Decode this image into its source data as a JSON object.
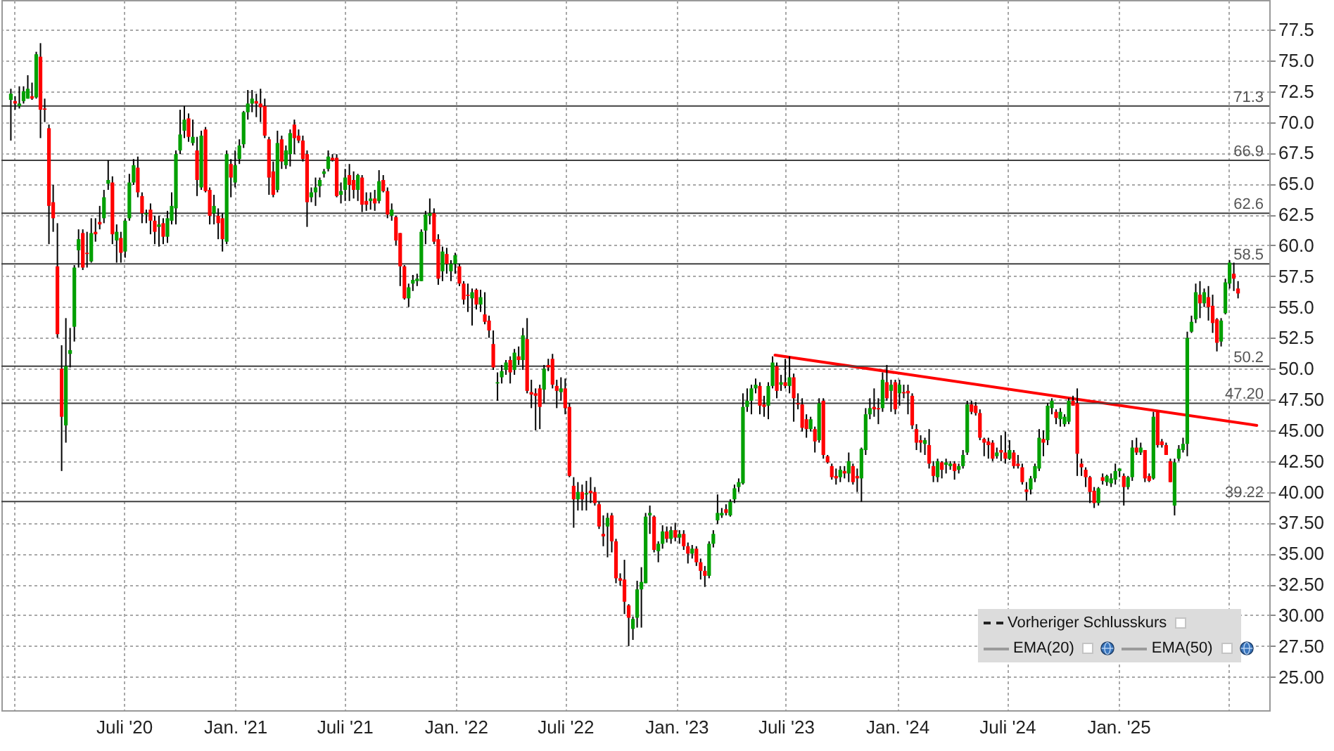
{
  "chart_data": {
    "type": "candlestick",
    "x": [
      "2019-12-27",
      "2020-01-03",
      "2020-01-10",
      "2020-01-17",
      "2020-01-24",
      "2020-01-31",
      "2020-02-07",
      "2020-02-14",
      "2020-02-21",
      "2020-02-28",
      "2020-03-06",
      "2020-03-13",
      "2020-03-20",
      "2020-03-27",
      "2020-04-03",
      "2020-04-10",
      "2020-04-17",
      "2020-04-24",
      "2020-05-01",
      "2020-05-08",
      "2020-05-15",
      "2020-05-22",
      "2020-05-29",
      "2020-06-05",
      "2020-06-12",
      "2020-06-19",
      "2020-06-26",
      "2020-07-03",
      "2020-07-10",
      "2020-07-17",
      "2020-07-24",
      "2020-07-31",
      "2020-08-07",
      "2020-08-14",
      "2020-08-21",
      "2020-08-28",
      "2020-09-04",
      "2020-09-11",
      "2020-09-18",
      "2020-09-25",
      "2020-10-02",
      "2020-10-09",
      "2020-10-16",
      "2020-10-23",
      "2020-10-30",
      "2020-11-06",
      "2020-11-13",
      "2020-11-20",
      "2020-11-27",
      "2020-12-04",
      "2020-12-11",
      "2020-12-18",
      "2020-12-25",
      "2021-01-01",
      "2021-01-08",
      "2021-01-15",
      "2021-01-22",
      "2021-01-29",
      "2021-02-05",
      "2021-02-12",
      "2021-02-19",
      "2021-02-26",
      "2021-03-05",
      "2021-03-12",
      "2021-03-19",
      "2021-03-26",
      "2021-04-02",
      "2021-04-09",
      "2021-04-16",
      "2021-04-23",
      "2021-04-30",
      "2021-05-07",
      "2021-05-14",
      "2021-05-21",
      "2021-05-28",
      "2021-06-04",
      "2021-06-11",
      "2021-06-18",
      "2021-06-25",
      "2021-07-02",
      "2021-07-09",
      "2021-07-16",
      "2021-07-23",
      "2021-07-30",
      "2021-08-06",
      "2021-08-13",
      "2021-08-20",
      "2021-08-27",
      "2021-09-03",
      "2021-09-10",
      "2021-09-17",
      "2021-09-24",
      "2021-10-01",
      "2021-10-08",
      "2021-10-15",
      "2021-10-22",
      "2021-10-29",
      "2021-11-05",
      "2021-11-12",
      "2021-11-19",
      "2021-11-26",
      "2021-12-03",
      "2021-12-10",
      "2021-12-17",
      "2021-12-24",
      "2021-12-31",
      "2022-01-07",
      "2022-01-14",
      "2022-01-21",
      "2022-01-28",
      "2022-02-04",
      "2022-02-11",
      "2022-02-18",
      "2022-02-25",
      "2022-03-04",
      "2022-03-11",
      "2022-03-18",
      "2022-03-25",
      "2022-04-01",
      "2022-04-08",
      "2022-04-15",
      "2022-04-22",
      "2022-04-29",
      "2022-05-06",
      "2022-05-13",
      "2022-05-20",
      "2022-05-27",
      "2022-06-03",
      "2022-06-10",
      "2022-06-17",
      "2022-06-24",
      "2022-07-01",
      "2022-07-08",
      "2022-07-15",
      "2022-07-22",
      "2022-07-29",
      "2022-08-05",
      "2022-08-12",
      "2022-08-19",
      "2022-08-26",
      "2022-09-02",
      "2022-09-09",
      "2022-09-16",
      "2022-09-23",
      "2022-09-30",
      "2022-10-07",
      "2022-10-14",
      "2022-10-21",
      "2022-10-28",
      "2022-11-04",
      "2022-11-11",
      "2022-11-18",
      "2022-11-25",
      "2022-12-02",
      "2022-12-09",
      "2022-12-16",
      "2022-12-23",
      "2022-12-30",
      "2023-01-06",
      "2023-01-13",
      "2023-01-20",
      "2023-01-27",
      "2023-02-03",
      "2023-02-10",
      "2023-02-17",
      "2023-02-24",
      "2023-03-03",
      "2023-03-10",
      "2023-03-17",
      "2023-03-24",
      "2023-03-31",
      "2023-04-07",
      "2023-04-14",
      "2023-04-21",
      "2023-04-28",
      "2023-05-05",
      "2023-05-12",
      "2023-05-19",
      "2023-05-26",
      "2023-06-02",
      "2023-06-09",
      "2023-06-16",
      "2023-06-23",
      "2023-06-30",
      "2023-07-07",
      "2023-07-14",
      "2023-07-21",
      "2023-07-28",
      "2023-08-04",
      "2023-08-11",
      "2023-08-18",
      "2023-08-25",
      "2023-09-01",
      "2023-09-08",
      "2023-09-15",
      "2023-09-22",
      "2023-09-29",
      "2023-10-06",
      "2023-10-13",
      "2023-10-20",
      "2023-10-27",
      "2023-11-03",
      "2023-11-10",
      "2023-11-17",
      "2023-11-24",
      "2023-12-01",
      "2023-12-08",
      "2023-12-15",
      "2023-12-22",
      "2023-12-29",
      "2024-01-05",
      "2024-01-12",
      "2024-01-19",
      "2024-01-26",
      "2024-02-02",
      "2024-02-09",
      "2024-02-16",
      "2024-02-23",
      "2024-03-01",
      "2024-03-08",
      "2024-03-15",
      "2024-03-22",
      "2024-03-29",
      "2024-04-05",
      "2024-04-12",
      "2024-04-19",
      "2024-04-26",
      "2024-05-03",
      "2024-05-10",
      "2024-05-17",
      "2024-05-24",
      "2024-05-31",
      "2024-06-07",
      "2024-06-14",
      "2024-06-21",
      "2024-06-28",
      "2024-07-05",
      "2024-07-12",
      "2024-07-19",
      "2024-07-26",
      "2024-08-02",
      "2024-08-09",
      "2024-08-16",
      "2024-08-23",
      "2024-08-30",
      "2024-09-06",
      "2024-09-13",
      "2024-09-20",
      "2024-09-27",
      "2024-10-04",
      "2024-10-11",
      "2024-10-18",
      "2024-10-25",
      "2024-11-01",
      "2024-11-08",
      "2024-11-15",
      "2024-11-22",
      "2024-11-29",
      "2024-12-06",
      "2024-12-13",
      "2024-12-20",
      "2024-12-27",
      "2025-01-03",
      "2025-01-10",
      "2025-01-17",
      "2025-01-24",
      "2025-01-31",
      "2025-02-07",
      "2025-02-14",
      "2025-02-21",
      "2025-02-28",
      "2025-03-07",
      "2025-03-14",
      "2025-03-21",
      "2025-03-28",
      "2025-04-04",
      "2025-04-11",
      "2025-04-18",
      "2025-04-25",
      "2025-05-02",
      "2025-05-09",
      "2025-05-16",
      "2025-05-23",
      "2025-05-30",
      "2025-06-06",
      "2025-06-13",
      "2025-06-20",
      "2025-06-27",
      "2025-07-04",
      "2025-07-11",
      "2025-07-18"
    ],
    "ohlc": [
      [
        71.8,
        72.7,
        68.5,
        72.3
      ],
      [
        71.7,
        72.1,
        71.0,
        71.5
      ],
      [
        71.3,
        72.9,
        71.1,
        71.5
      ],
      [
        71.7,
        72.9,
        71.5,
        72.5
      ],
      [
        71.9,
        73.8,
        71.9,
        72.7
      ],
      [
        72.1,
        73.2,
        71.8,
        71.9
      ],
      [
        72.0,
        75.7,
        71.9,
        75.5
      ],
      [
        75.3,
        76.4,
        68.7,
        71.0
      ],
      [
        71.1,
        71.9,
        70.0,
        71.0
      ],
      [
        69.5,
        69.8,
        60.1,
        63.2
      ],
      [
        63.5,
        64.9,
        61.1,
        62.2
      ],
      [
        58.3,
        61.8,
        52.5,
        52.8
      ],
      [
        50.0,
        51.9,
        41.7,
        46.1
      ],
      [
        45.4,
        54.1,
        44.0,
        50.2
      ],
      [
        51.2,
        53.3,
        50.1,
        51.5
      ],
      [
        53.4,
        58.4,
        52.2,
        58.2
      ],
      [
        59.6,
        61.3,
        58.2,
        60.5
      ],
      [
        61.0,
        61.3,
        58.0,
        58.2
      ],
      [
        59.4,
        61.1,
        58.2,
        59.3
      ],
      [
        58.7,
        62.2,
        58.6,
        61.0
      ],
      [
        61.1,
        62.2,
        60.3,
        60.9
      ],
      [
        61.9,
        63.2,
        61.3,
        61.7
      ],
      [
        62.2,
        64.5,
        61.8,
        63.9
      ],
      [
        65.0,
        66.9,
        64.5,
        65.3
      ],
      [
        65.1,
        65.6,
        60.1,
        60.9
      ],
      [
        60.4,
        61.7,
        58.6,
        61.1
      ],
      [
        60.6,
        61.1,
        58.6,
        59.4
      ],
      [
        59.5,
        62.2,
        59.0,
        62.0
      ],
      [
        62.2,
        65.8,
        62.0,
        65.1
      ],
      [
        65.1,
        67.0,
        64.9,
        66.5
      ],
      [
        66.3,
        67.2,
        63.9,
        64.3
      ],
      [
        64.0,
        64.3,
        61.8,
        62.6
      ],
      [
        62.5,
        62.9,
        61.8,
        62.6
      ],
      [
        62.9,
        63.4,
        60.9,
        62.0
      ],
      [
        62.0,
        62.4,
        60.1,
        61.1
      ],
      [
        61.5,
        62.4,
        59.9,
        61.7
      ],
      [
        61.8,
        62.2,
        60.1,
        60.7
      ],
      [
        60.7,
        62.8,
        60.2,
        62.2
      ],
      [
        62.0,
        64.3,
        61.7,
        63.2
      ],
      [
        63.0,
        67.7,
        61.7,
        67.4
      ],
      [
        67.7,
        71.0,
        67.4,
        69.0
      ],
      [
        69.3,
        71.3,
        68.7,
        70.2
      ],
      [
        70.3,
        70.7,
        68.4,
        68.8
      ],
      [
        68.3,
        70.2,
        68.1,
        68.8
      ],
      [
        67.7,
        68.8,
        64.0,
        65.3
      ],
      [
        64.7,
        69.3,
        64.5,
        68.9
      ],
      [
        69.4,
        69.6,
        64.3,
        64.4
      ],
      [
        64.5,
        64.7,
        61.7,
        62.4
      ],
      [
        62.6,
        64.1,
        61.7,
        63.2
      ],
      [
        62.4,
        63.0,
        60.5,
        61.8
      ],
      [
        62.2,
        62.6,
        59.5,
        60.5
      ],
      [
        60.3,
        67.7,
        60.1,
        67.4
      ],
      [
        66.6,
        67.0,
        63.9,
        65.5
      ],
      [
        65.1,
        67.7,
        64.7,
        66.5
      ],
      [
        67.0,
        68.6,
        66.6,
        68.1
      ],
      [
        68.2,
        70.9,
        67.9,
        70.8
      ],
      [
        70.8,
        72.6,
        70.2,
        71.5
      ],
      [
        71.5,
        72.6,
        70.8,
        71.9
      ],
      [
        71.7,
        72.3,
        70.4,
        71.5
      ],
      [
        71.5,
        72.7,
        70.0,
        71.2
      ],
      [
        71.3,
        71.9,
        68.7,
        68.9
      ],
      [
        68.6,
        68.8,
        64.1,
        65.5
      ],
      [
        66.0,
        66.8,
        63.9,
        64.1
      ],
      [
        64.5,
        69.3,
        64.3,
        68.3
      ],
      [
        68.6,
        68.9,
        66.2,
        66.8
      ],
      [
        66.5,
        68.1,
        66.2,
        67.7
      ],
      [
        67.4,
        69.4,
        66.4,
        69.1
      ],
      [
        69.8,
        70.2,
        67.4,
        68.7
      ],
      [
        68.9,
        69.4,
        68.3,
        68.5
      ],
      [
        68.5,
        68.9,
        66.8,
        67.0
      ],
      [
        67.4,
        67.7,
        61.5,
        63.5
      ],
      [
        63.9,
        64.7,
        63.5,
        64.3
      ],
      [
        64.3,
        65.5,
        63.2,
        64.7
      ],
      [
        64.8,
        65.5,
        63.9,
        65.3
      ],
      [
        65.8,
        66.2,
        65.5,
        66.0
      ],
      [
        66.2,
        67.7,
        66.0,
        67.2
      ],
      [
        67.1,
        67.4,
        66.8,
        66.9
      ],
      [
        67.1,
        67.4,
        63.9,
        64.0
      ],
      [
        64.1,
        65.1,
        63.4,
        64.4
      ],
      [
        64.5,
        66.2,
        63.6,
        65.5
      ],
      [
        65.7,
        66.6,
        63.6,
        64.9
      ],
      [
        65.3,
        66.0,
        63.8,
        64.5
      ],
      [
        64.5,
        65.8,
        63.6,
        65.7
      ],
      [
        65.5,
        65.7,
        62.7,
        63.3
      ],
      [
        63.6,
        64.3,
        62.8,
        63.3
      ],
      [
        63.6,
        64.3,
        62.9,
        63.8
      ],
      [
        63.8,
        64.5,
        62.8,
        63.4
      ],
      [
        63.6,
        66.1,
        63.4,
        65.2
      ],
      [
        65.3,
        65.7,
        64.3,
        64.4
      ],
      [
        64.4,
        64.7,
        62.2,
        62.5
      ],
      [
        62.4,
        63.4,
        62.0,
        62.9
      ],
      [
        62.3,
        62.4,
        60.0,
        60.4
      ],
      [
        61.0,
        61.0,
        56.7,
        58.3
      ],
      [
        58.3,
        58.4,
        55.6,
        55.7
      ],
      [
        55.7,
        56.9,
        55.0,
        56.6
      ],
      [
        56.9,
        57.6,
        56.3,
        57.2
      ],
      [
        57.1,
        57.7,
        56.7,
        57.3
      ],
      [
        57.1,
        61.3,
        57.1,
        61.1
      ],
      [
        61.2,
        62.8,
        60.1,
        62.5
      ],
      [
        62.4,
        63.8,
        61.7,
        62.6
      ],
      [
        62.6,
        63.0,
        60.1,
        60.3
      ],
      [
        60.5,
        60.9,
        56.8,
        57.3
      ],
      [
        57.9,
        59.9,
        57.1,
        59.5
      ],
      [
        59.3,
        59.8,
        57.7,
        58.5
      ],
      [
        57.9,
        58.8,
        57.1,
        58.5
      ],
      [
        58.5,
        59.4,
        57.7,
        59.2
      ],
      [
        58.3,
        58.5,
        56.7,
        56.9
      ],
      [
        56.9,
        57.1,
        55.2,
        55.6
      ],
      [
        56.0,
        56.9,
        54.6,
        55.9
      ],
      [
        55.7,
        56.5,
        53.5,
        56.2
      ],
      [
        56.4,
        56.5,
        54.8,
        55.2
      ],
      [
        55.2,
        56.4,
        54.6,
        55.8
      ],
      [
        54.4,
        56.2,
        53.6,
        53.8
      ],
      [
        53.9,
        54.3,
        52.5,
        53.1
      ],
      [
        52.0,
        53.1,
        49.9,
        50.1
      ],
      [
        48.8,
        49.7,
        47.4,
        48.9
      ],
      [
        49.3,
        50.3,
        48.8,
        49.8
      ],
      [
        49.9,
        50.7,
        49.5,
        50.5
      ],
      [
        50.7,
        51.0,
        48.8,
        49.7
      ],
      [
        49.9,
        51.6,
        49.5,
        51.3
      ],
      [
        51.0,
        51.8,
        50.3,
        50.7
      ],
      [
        50.7,
        53.3,
        49.9,
        52.7
      ],
      [
        52.4,
        54.1,
        48.0,
        48.2
      ],
      [
        48.1,
        49.1,
        46.8,
        47.9
      ],
      [
        48.0,
        48.4,
        45.0,
        47.8
      ],
      [
        48.4,
        48.7,
        45.1,
        46.9
      ],
      [
        48.3,
        50.3,
        47.2,
        50.0
      ],
      [
        50.3,
        50.8,
        49.8,
        50.1
      ],
      [
        50.8,
        51.2,
        48.4,
        48.7
      ],
      [
        48.6,
        49.1,
        46.8,
        48.2
      ],
      [
        48.1,
        49.3,
        47.4,
        48.4
      ],
      [
        48.4,
        49.2,
        46.3,
        46.8
      ],
      [
        46.9,
        47.2,
        41.2,
        41.3
      ],
      [
        40.5,
        41.2,
        37.1,
        39.4
      ],
      [
        39.4,
        40.8,
        38.5,
        40.0
      ],
      [
        40.0,
        40.6,
        38.5,
        39.4
      ],
      [
        39.8,
        40.9,
        38.5,
        39.9
      ],
      [
        40.1,
        41.2,
        39.1,
        39.9
      ],
      [
        40.0,
        40.4,
        38.9,
        39.1
      ],
      [
        39.0,
        39.2,
        37.0,
        37.2
      ],
      [
        36.6,
        38.1,
        35.6,
        36.4
      ],
      [
        37.2,
        38.3,
        34.7,
        37.9
      ],
      [
        38.1,
        38.3,
        35.1,
        36.0
      ],
      [
        36.0,
        36.2,
        32.6,
        33.0
      ],
      [
        33.0,
        33.4,
        32.4,
        32.8
      ],
      [
        32.9,
        34.5,
        30.1,
        31.1
      ],
      [
        30.8,
        30.9,
        27.5,
        29.8
      ],
      [
        28.9,
        29.9,
        28.0,
        29.7
      ],
      [
        29.8,
        32.8,
        29.0,
        32.1
      ],
      [
        32.1,
        33.9,
        29.0,
        32.7
      ],
      [
        32.6,
        38.3,
        32.6,
        38.0
      ],
      [
        38.1,
        38.9,
        36.6,
        38.3
      ],
      [
        38.0,
        38.1,
        35.1,
        35.3
      ],
      [
        35.2,
        36.0,
        34.3,
        35.8
      ],
      [
        35.8,
        37.3,
        35.4,
        36.8
      ],
      [
        36.8,
        37.2,
        35.9,
        36.2
      ],
      [
        36.2,
        37.2,
        35.8,
        36.9
      ],
      [
        36.9,
        37.5,
        36.0,
        36.3
      ],
      [
        36.3,
        36.9,
        35.8,
        36.6
      ],
      [
        36.6,
        36.9,
        35.3,
        35.6
      ],
      [
        35.6,
        35.9,
        34.2,
        35.0
      ],
      [
        35.0,
        35.7,
        34.6,
        35.4
      ],
      [
        35.4,
        35.6,
        34.0,
        34.3
      ],
      [
        34.3,
        34.6,
        32.9,
        33.6
      ],
      [
        33.6,
        34.0,
        32.3,
        33.2
      ],
      [
        33.2,
        36.0,
        33.0,
        35.8
      ],
      [
        35.8,
        36.9,
        35.5,
        36.6
      ],
      [
        37.7,
        39.8,
        37.4,
        38.3
      ],
      [
        38.1,
        38.7,
        37.9,
        38.3
      ],
      [
        38.6,
        39.0,
        38.1,
        38.3
      ],
      [
        38.1,
        39.4,
        38.0,
        39.2
      ],
      [
        39.4,
        40.6,
        39.1,
        40.3
      ],
      [
        40.4,
        41.1,
        40.0,
        40.8
      ],
      [
        40.7,
        48.0,
        40.6,
        46.9
      ],
      [
        46.9,
        48.4,
        46.5,
        47.4
      ],
      [
        47.4,
        48.7,
        46.3,
        48.4
      ],
      [
        48.4,
        49.2,
        48.0,
        48.7
      ],
      [
        48.6,
        48.9,
        46.3,
        47.0
      ],
      [
        47.1,
        47.8,
        46.1,
        46.9
      ],
      [
        47.0,
        48.9,
        45.9,
        48.6
      ],
      [
        48.6,
        51.0,
        48.4,
        50.5
      ],
      [
        50.2,
        50.5,
        47.6,
        48.2
      ],
      [
        48.7,
        49.5,
        48.2,
        48.9
      ],
      [
        48.9,
        50.8,
        48.4,
        48.6
      ],
      [
        48.6,
        51.0,
        48.0,
        49.3
      ],
      [
        49.3,
        49.6,
        45.7,
        47.6
      ],
      [
        47.2,
        48.0,
        46.7,
        47.1
      ],
      [
        47.1,
        47.6,
        44.9,
        45.2
      ],
      [
        45.9,
        46.3,
        44.4,
        45.1
      ],
      [
        45.1,
        46.1,
        44.9,
        45.9
      ],
      [
        45.1,
        45.3,
        43.2,
        44.1
      ],
      [
        44.2,
        47.6,
        44.0,
        47.2
      ],
      [
        47.4,
        47.6,
        42.7,
        43.0
      ],
      [
        42.9,
        43.0,
        42.3,
        42.4
      ],
      [
        42.1,
        42.3,
        41.0,
        41.2
      ],
      [
        41.3,
        41.9,
        40.6,
        41.1
      ],
      [
        41.2,
        42.1,
        40.8,
        41.8
      ],
      [
        41.7,
        42.1,
        41.1,
        41.5
      ],
      [
        41.5,
        43.2,
        40.8,
        42.5
      ],
      [
        42.1,
        42.3,
        40.6,
        40.8
      ],
      [
        41.3,
        41.9,
        40.0,
        41.1
      ],
      [
        41.1,
        43.6,
        39.2,
        43.5
      ],
      [
        43.4,
        46.8,
        43.0,
        46.3
      ],
      [
        46.3,
        47.6,
        45.9,
        46.8
      ],
      [
        46.9,
        48.4,
        46.1,
        46.7
      ],
      [
        46.8,
        47.6,
        45.5,
        46.7
      ],
      [
        46.8,
        49.7,
        46.5,
        49.1
      ],
      [
        48.9,
        50.3,
        47.4,
        47.6
      ],
      [
        48.2,
        49.1,
        46.5,
        48.7
      ],
      [
        48.9,
        49.1,
        46.3,
        46.7
      ],
      [
        48.0,
        49.1,
        47.0,
        48.7
      ],
      [
        48.1,
        48.7,
        47.6,
        48.0
      ],
      [
        48.2,
        48.7,
        46.3,
        48.0
      ],
      [
        47.8,
        48.0,
        45.1,
        45.4
      ],
      [
        45.1,
        45.5,
        43.4,
        44.0
      ],
      [
        44.2,
        44.6,
        43.2,
        44.0
      ],
      [
        43.9,
        44.4,
        43.0,
        44.2
      ],
      [
        43.8,
        45.1,
        41.9,
        42.3
      ],
      [
        42.1,
        42.5,
        40.8,
        41.3
      ],
      [
        41.2,
        42.7,
        40.8,
        42.5
      ],
      [
        42.4,
        42.5,
        41.1,
        41.8
      ],
      [
        42.2,
        42.7,
        41.5,
        42.4
      ],
      [
        42.1,
        42.5,
        41.8,
        42.3
      ],
      [
        42.3,
        42.5,
        41.0,
        41.7
      ],
      [
        41.8,
        42.3,
        41.5,
        42.1
      ],
      [
        42.1,
        43.4,
        41.9,
        43.0
      ],
      [
        43.2,
        47.4,
        43.0,
        47.1
      ],
      [
        47.1,
        47.4,
        46.3,
        46.5
      ],
      [
        47.0,
        47.3,
        46.2,
        46.4
      ],
      [
        46.4,
        46.7,
        44.2,
        44.4
      ],
      [
        44.3,
        44.4,
        42.9,
        44.0
      ],
      [
        44.1,
        44.4,
        42.7,
        43.8
      ],
      [
        44.0,
        44.2,
        42.5,
        42.7
      ],
      [
        42.9,
        43.6,
        42.7,
        43.2
      ],
      [
        43.4,
        44.6,
        42.5,
        43.2
      ],
      [
        43.2,
        44.9,
        42.3,
        42.7
      ],
      [
        42.7,
        44.2,
        42.6,
        43.4
      ],
      [
        43.2,
        43.4,
        41.9,
        42.1
      ],
      [
        42.3,
        43.0,
        41.9,
        42.1
      ],
      [
        42.0,
        42.3,
        40.6,
        40.8
      ],
      [
        40.2,
        40.8,
        39.3,
        40.0
      ],
      [
        40.2,
        41.3,
        39.8,
        41.1
      ],
      [
        41.1,
        42.3,
        40.8,
        42.1
      ],
      [
        41.9,
        45.1,
        41.7,
        44.4
      ],
      [
        44.3,
        45.0,
        42.9,
        44.0
      ],
      [
        44.2,
        47.2,
        43.8,
        47.0
      ],
      [
        46.8,
        47.6,
        46.3,
        47.4
      ],
      [
        46.5,
        46.7,
        45.5,
        46.0
      ],
      [
        45.9,
        46.8,
        45.3,
        46.5
      ],
      [
        45.5,
        46.3,
        45.3,
        46.1
      ],
      [
        45.7,
        47.6,
        45.5,
        47.4
      ],
      [
        47.4,
        47.8,
        47.0,
        47.0
      ],
      [
        47.2,
        48.4,
        41.3,
        43.1
      ],
      [
        42.3,
        42.7,
        41.3,
        42.0
      ],
      [
        41.8,
        42.0,
        40.4,
        41.2
      ],
      [
        41.2,
        41.3,
        39.1,
        40.0
      ],
      [
        40.1,
        40.4,
        38.7,
        39.1
      ],
      [
        39.1,
        40.4,
        38.9,
        40.3
      ],
      [
        41.2,
        41.5,
        40.6,
        40.9
      ],
      [
        40.8,
        41.4,
        40.5,
        41.3
      ],
      [
        40.7,
        41.5,
        40.4,
        41.1
      ],
      [
        41.0,
        42.3,
        40.6,
        41.7
      ],
      [
        41.7,
        41.9,
        41.2,
        41.9
      ],
      [
        41.3,
        41.5,
        38.9,
        40.4
      ],
      [
        40.4,
        41.3,
        40.2,
        41.2
      ],
      [
        41.2,
        44.2,
        40.9,
        43.6
      ],
      [
        43.6,
        44.4,
        43.0,
        43.2
      ],
      [
        43.2,
        44.0,
        43.0,
        43.6
      ],
      [
        43.4,
        43.4,
        40.8,
        41.1
      ],
      [
        41.3,
        41.5,
        40.8,
        40.9
      ],
      [
        41.1,
        46.5,
        41.0,
        46.1
      ],
      [
        46.5,
        46.5,
        43.6,
        43.8
      ],
      [
        44.1,
        44.3,
        43.6,
        43.8
      ],
      [
        43.8,
        44.0,
        43.0,
        43.0
      ],
      [
        42.5,
        42.7,
        40.8,
        40.8
      ],
      [
        38.9,
        42.7,
        38.1,
        42.4
      ],
      [
        42.7,
        43.8,
        42.5,
        43.5
      ],
      [
        43.4,
        44.4,
        43.2,
        43.9
      ],
      [
        43.9,
        53.0,
        42.9,
        52.5
      ],
      [
        53.0,
        54.3,
        52.9,
        53.8
      ],
      [
        54.0,
        56.9,
        53.7,
        56.2
      ],
      [
        56.0,
        57.1,
        54.1,
        55.3
      ],
      [
        55.3,
        56.5,
        55.0,
        56.2
      ],
      [
        55.8,
        56.7,
        53.9,
        55.0
      ],
      [
        55.1,
        56.0,
        52.9,
        53.7
      ],
      [
        54.0,
        54.1,
        51.4,
        52.1
      ],
      [
        52.2,
        54.1,
        51.8,
        53.9
      ],
      [
        54.5,
        57.3,
        54.4,
        57.0
      ],
      [
        56.9,
        58.8,
        56.5,
        58.6
      ],
      [
        57.7,
        58.6,
        56.3,
        57.3
      ],
      [
        56.5,
        57.1,
        55.7,
        56.1
      ]
    ],
    "colors": [
      "#00a000",
      "#ff0000",
      "#00a000",
      "#00a000",
      "#00a000",
      "#ff0000",
      "#00a000",
      "#ff0000",
      "#ff0000",
      "#ff0000",
      "#ff0000",
      "#ff0000",
      "#ff0000",
      "#00a000",
      "#00a000",
      "#00a000",
      "#00a000",
      "#ff0000",
      "#ff0000",
      "#00a000",
      "#ff0000",
      "#ff0000",
      "#00a000",
      "#00a000",
      "#ff0000",
      "#00a000",
      "#ff0000",
      "#00a000",
      "#00a000",
      "#00a000",
      "#ff0000",
      "#ff0000",
      "#00a000",
      "#ff0000",
      "#ff0000",
      "#00a000",
      "#ff0000",
      "#00a000",
      "#00a000",
      "#00a000",
      "#00a000",
      "#00a000",
      "#ff0000",
      "#00a000",
      "#ff0000",
      "#00a000",
      "#ff0000",
      "#ff0000",
      "#00a000",
      "#ff0000",
      "#ff0000",
      "#00a000",
      "#ff0000",
      "#00a000",
      "#00a000",
      "#00a000",
      "#00a000",
      "#00a000",
      "#ff0000",
      "#ff0000",
      "#ff0000",
      "#ff0000",
      "#ff0000",
      "#00a000",
      "#ff0000",
      "#00a000",
      "#00a000",
      "#ff0000",
      "#ff0000",
      "#ff0000",
      "#ff0000",
      "#00a000",
      "#00a000",
      "#00a000",
      "#00a000",
      "#00a000",
      "#ff0000",
      "#ff0000",
      "#00a000",
      "#00a000",
      "#ff0000",
      "#ff0000",
      "#00a000",
      "#ff0000",
      "#ff0000",
      "#00a000",
      "#ff0000",
      "#00a000",
      "#ff0000",
      "#ff0000",
      "#00a000",
      "#ff0000",
      "#ff0000",
      "#ff0000",
      "#00a000",
      "#00a000",
      "#00a000",
      "#00a000",
      "#00a000",
      "#00a000",
      "#ff0000",
      "#ff0000",
      "#00a000",
      "#ff0000",
      "#00a000",
      "#00a000",
      "#ff0000",
      "#ff0000",
      "#ff0000",
      "#00a000",
      "#ff0000",
      "#00a000",
      "#ff0000",
      "#ff0000",
      "#ff0000",
      "#00a000",
      "#00a000",
      "#00a000",
      "#ff0000",
      "#00a000",
      "#ff0000",
      "#00a000",
      "#ff0000",
      "#ff0000",
      "#ff0000",
      "#ff0000",
      "#00a000",
      "#ff0000",
      "#ff0000",
      "#ff0000",
      "#00a000",
      "#ff0000",
      "#ff0000",
      "#ff0000",
      "#00a000",
      "#ff0000",
      "#00a000",
      "#ff0000",
      "#ff0000",
      "#ff0000",
      "#ff0000",
      "#00a000",
      "#ff0000",
      "#ff0000",
      "#ff0000",
      "#ff0000",
      "#ff0000",
      "#00a000",
      "#00a000",
      "#00a000",
      "#00a000",
      "#00a000",
      "#ff0000",
      "#00a000",
      "#00a000",
      "#ff0000",
      "#00a000",
      "#ff0000",
      "#00a000",
      "#ff0000",
      "#ff0000",
      "#00a000",
      "#ff0000",
      "#ff0000",
      "#ff0000",
      "#00a000",
      "#00a000",
      "#00a000",
      "#00a000",
      "#ff0000",
      "#00a000",
      "#00a000",
      "#00a000",
      "#00a000",
      "#00a000",
      "#00a000",
      "#00a000",
      "#ff0000",
      "#ff0000",
      "#00a000",
      "#00a000",
      "#ff0000",
      "#00a000",
      "#ff0000",
      "#00a000",
      "#ff0000",
      "#ff0000",
      "#ff0000",
      "#ff0000",
      "#00a000",
      "#ff0000",
      "#00a000",
      "#ff0000",
      "#ff0000",
      "#ff0000",
      "#ff0000",
      "#00a000",
      "#ff0000",
      "#00a000",
      "#ff0000",
      "#ff0000",
      "#00a000",
      "#00a000",
      "#00a000",
      "#ff0000",
      "#ff0000",
      "#00a000",
      "#ff0000",
      "#00a000",
      "#ff0000",
      "#00a000",
      "#ff0000",
      "#ff0000",
      "#ff0000",
      "#ff0000",
      "#ff0000",
      "#00a000",
      "#ff0000",
      "#ff0000",
      "#00a000",
      "#ff0000",
      "#00a000",
      "#00a000",
      "#ff0000",
      "#00a000",
      "#00a000",
      "#00a000",
      "#ff0000",
      "#ff0000",
      "#ff0000",
      "#ff0000",
      "#ff0000",
      "#ff0000",
      "#00a000",
      "#ff0000",
      "#ff0000",
      "#00a000",
      "#ff0000",
      "#ff0000",
      "#ff0000",
      "#ff0000",
      "#00a000",
      "#00a000",
      "#00a000",
      "#ff0000",
      "#00a000",
      "#00a000",
      "#ff0000",
      "#00a000",
      "#00a000",
      "#00a000",
      "#ff0000",
      "#ff0000",
      "#ff0000",
      "#ff0000",
      "#ff0000",
      "#ff0000",
      "#00a000",
      "#ff0000",
      "#00a000",
      "#00a000",
      "#00a000",
      "#00a000",
      "#ff0000",
      "#00a000",
      "#00a000",
      "#ff0000",
      "#00a000",
      "#ff0000",
      "#ff0000",
      "#00a000",
      "#ff0000",
      "#ff0000",
      "#ff0000",
      "#ff0000",
      "#00a000",
      "#00a000",
      "#00a000",
      "#00a000",
      "#00a000",
      "#00a000",
      "#ff0000",
      "#00a000",
      "#ff0000",
      "#ff0000",
      "#ff0000",
      "#00a000",
      "#00a000",
      "#00a000",
      "#ff0000",
      "#ff0000"
    ],
    "series": [
      {
        "type": "line",
        "color": "#ff0000",
        "x": [
          "2023-06-13",
          "2025-08-18"
        ],
        "values": [
          51.1,
          45.4
        ]
      }
    ],
    "xlim": [
      "2019-12-23",
      "2025-08-27"
    ],
    "ylim": [
      22.3,
      79.9
    ],
    "xticks": [
      {
        "value": "2020-01-01",
        "label": null
      },
      {
        "value": "2020-07-01",
        "label": "Juli '20"
      },
      {
        "value": "2021-01-01",
        "label": "Jan. '21"
      },
      {
        "value": "2021-07-01",
        "label": "Juli '21"
      },
      {
        "value": "2022-01-01",
        "label": "Jan. '22"
      },
      {
        "value": "2022-07-01",
        "label": "Juli '22"
      },
      {
        "value": "2023-01-01",
        "label": "Jan. '23"
      },
      {
        "value": "2023-07-01",
        "label": "Juli '23"
      },
      {
        "value": "2024-01-01",
        "label": "Jan. '24"
      },
      {
        "value": "2024-07-01",
        "label": "Juli '24"
      },
      {
        "value": "2025-01-01",
        "label": "Jan. '25"
      },
      {
        "value": "2025-07-01",
        "label": null
      }
    ],
    "yticks": [
      {
        "value": 25,
        "label": "25.00"
      },
      {
        "value": 27.5,
        "label": "27.50"
      },
      {
        "value": 30,
        "label": "30.00"
      },
      {
        "value": 32.5,
        "label": "32.50"
      },
      {
        "value": 35,
        "label": "35.00"
      },
      {
        "value": 37.5,
        "label": "37.50"
      },
      {
        "value": 40,
        "label": "40.00"
      },
      {
        "value": 42.5,
        "label": "42.50"
      },
      {
        "value": 45,
        "label": "45.00"
      },
      {
        "value": 47.5,
        "label": "47.50"
      },
      {
        "value": 50,
        "label": "50.0"
      },
      52.5,
      {
        "value": 55,
        "label": "55.0"
      },
      57.5,
      {
        "value": 60,
        "label": "60.0"
      },
      62.5,
      {
        "value": 65,
        "label": "65.0"
      },
      67.5,
      {
        "value": 70,
        "label": "70.0"
      },
      72.5,
      {
        "value": 75,
        "label": "75.0"
      },
      77.5
    ],
    "grid": true,
    "ref_lines": [
      {
        "axis": "y",
        "value": 71.3,
        "label": "71.3",
        "color": "#404040"
      },
      {
        "axis": "y",
        "value": 66.9,
        "label": "66.9",
        "color": "#404040"
      },
      {
        "axis": "y",
        "value": 62.6,
        "label": "62.6",
        "color": "#404040"
      },
      {
        "axis": "y",
        "value": 58.5,
        "label": "58.5",
        "color": "#404040"
      },
      {
        "axis": "y",
        "value": 50.2,
        "label": "50.2",
        "color": "#404040"
      },
      {
        "axis": "y",
        "value": 47.2,
        "label": "47.20",
        "color": "#404040"
      },
      {
        "axis": "y",
        "value": 39.22,
        "label": "39.22",
        "color": "#404040"
      }
    ],
    "annotations": [
      "Vorheriger Schlusskurs",
      "EMA(20)",
      "EMA(50)"
    ]
  }
}
